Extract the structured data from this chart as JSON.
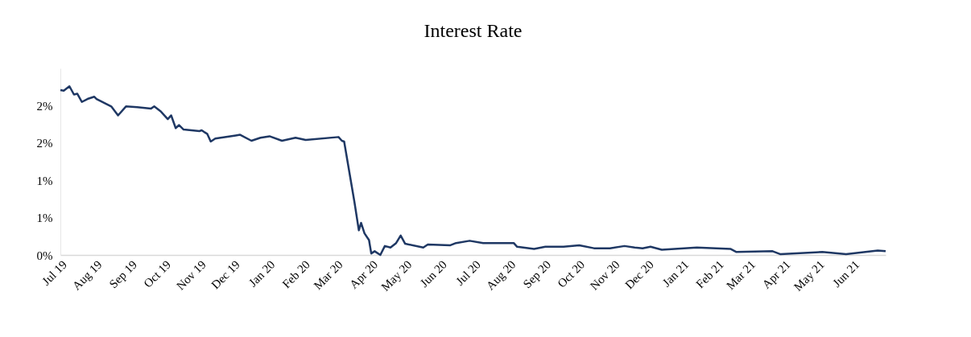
{
  "chart_data": {
    "type": "line",
    "title": "Interest Rate",
    "x": [
      "2019-07-01",
      "2019-07-04",
      "2019-07-09",
      "2019-07-13",
      "2019-07-16",
      "2019-07-20",
      "2019-07-25",
      "2019-07-31",
      "2019-08-02",
      "2019-08-15",
      "2019-08-21",
      "2019-08-28",
      "2019-09-07",
      "2019-09-19",
      "2019-09-22",
      "2019-09-28",
      "2019-10-04",
      "2019-10-07",
      "2019-10-11",
      "2019-10-14",
      "2019-10-18",
      "2019-11-01",
      "2019-11-03",
      "2019-11-08",
      "2019-11-11",
      "2019-11-15",
      "2019-12-03",
      "2019-12-07",
      "2019-12-17",
      "2019-12-25",
      "2020-01-02",
      "2020-01-13",
      "2020-01-25",
      "2020-02-03",
      "2020-03-03",
      "2020-03-06",
      "2020-03-08",
      "2020-03-17",
      "2020-03-21",
      "2020-03-23",
      "2020-03-26",
      "2020-03-30",
      "2020-04-01",
      "2020-04-04",
      "2020-04-09",
      "2020-04-13",
      "2020-04-18",
      "2020-04-23",
      "2020-04-27",
      "2020-05-01",
      "2020-05-17",
      "2020-05-21",
      "2020-06-10",
      "2020-06-15",
      "2020-06-27",
      "2020-07-09",
      "2020-08-05",
      "2020-08-08",
      "2020-08-23",
      "2020-09-02",
      "2020-09-18",
      "2020-10-02",
      "2020-10-15",
      "2020-10-29",
      "2020-11-11",
      "2020-11-20",
      "2020-11-27",
      "2020-12-04",
      "2020-12-14",
      "2021-01-14",
      "2021-02-13",
      "2021-02-18",
      "2021-03-22",
      "2021-03-29",
      "2021-05-05",
      "2021-05-26",
      "2021-06-23",
      "2021-06-30"
    ],
    "series": [
      {
        "color": "#1f3864",
        "values": [
          2.21,
          2.2,
          2.26,
          2.15,
          2.16,
          2.05,
          2.09,
          2.12,
          2.09,
          1.99,
          1.87,
          1.99,
          1.98,
          1.96,
          1.99,
          1.92,
          1.82,
          1.87,
          1.7,
          1.74,
          1.68,
          1.66,
          1.67,
          1.62,
          1.52,
          1.56,
          1.6,
          1.61,
          1.53,
          1.57,
          1.59,
          1.53,
          1.57,
          1.54,
          1.58,
          1.53,
          1.52,
          0.72,
          0.33,
          0.43,
          0.29,
          0.2,
          0.02,
          0.05,
          0.0,
          0.12,
          0.1,
          0.16,
          0.26,
          0.15,
          0.1,
          0.14,
          0.13,
          0.16,
          0.19,
          0.16,
          0.16,
          0.11,
          0.08,
          0.11,
          0.11,
          0.13,
          0.09,
          0.09,
          0.12,
          0.1,
          0.09,
          0.11,
          0.07,
          0.1,
          0.08,
          0.04,
          0.05,
          0.01,
          0.04,
          0.01,
          0.06,
          0.05
        ]
      }
    ],
    "xlim": [
      "2019-07-01",
      "2021-06-30"
    ],
    "xticks": [
      {
        "value": "2019-07-01",
        "label": "Jul 19"
      },
      {
        "value": "2019-08-01",
        "label": "Aug 19"
      },
      {
        "value": "2019-09-01",
        "label": "Sep 19"
      },
      {
        "value": "2019-10-01",
        "label": "Oct 19"
      },
      {
        "value": "2019-11-01",
        "label": "Nov 19"
      },
      {
        "value": "2019-12-01",
        "label": "Dec 19"
      },
      {
        "value": "2020-01-01",
        "label": "Jan 20"
      },
      {
        "value": "2020-02-01",
        "label": "Feb 20"
      },
      {
        "value": "2020-03-01",
        "label": "Mar 20"
      },
      {
        "value": "2020-04-01",
        "label": "Apr 20"
      },
      {
        "value": "2020-05-01",
        "label": "May 20"
      },
      {
        "value": "2020-06-01",
        "label": "Jun 20"
      },
      {
        "value": "2020-07-01",
        "label": "Jul 20"
      },
      {
        "value": "2020-08-01",
        "label": "Aug 20"
      },
      {
        "value": "2020-09-01",
        "label": "Sep 20"
      },
      {
        "value": "2020-10-01",
        "label": "Oct 20"
      },
      {
        "value": "2020-11-01",
        "label": "Nov 20"
      },
      {
        "value": "2020-12-01",
        "label": "Dec 20"
      },
      {
        "value": "2021-01-01",
        "label": "Jan 21"
      },
      {
        "value": "2021-02-01",
        "label": "Feb 21"
      },
      {
        "value": "2021-03-01",
        "label": "Mar 21"
      },
      {
        "value": "2021-04-01",
        "label": "Apr 21"
      },
      {
        "value": "2021-05-01",
        "label": "May 21"
      },
      {
        "value": "2021-06-01",
        "label": "Jun 21"
      }
    ],
    "ylim": [
      0,
      2.5
    ],
    "yticks": [
      {
        "value": 0,
        "label": "0%"
      },
      {
        "value": 0.5,
        "label": "1%"
      },
      {
        "value": 1,
        "label": "1%"
      },
      {
        "value": 1.5,
        "label": "2%"
      },
      {
        "value": 2,
        "label": "2%"
      }
    ],
    "grid": false,
    "legend": false,
    "marker": "none",
    "line_style": "solid"
  }
}
